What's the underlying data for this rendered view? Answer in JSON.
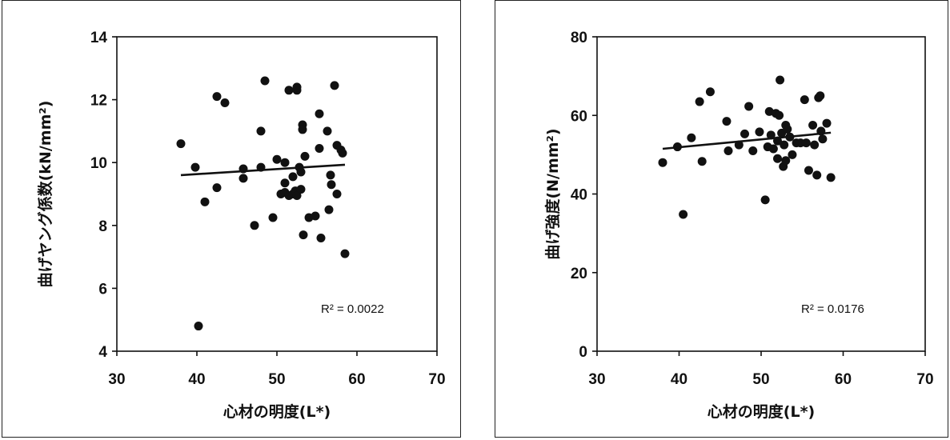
{
  "chart_data": [
    {
      "type": "scatter",
      "xlabel": "心材の明度(L*)",
      "ylabel": "曲げヤング係数(kN/mm²)",
      "xlim": [
        30,
        70
      ],
      "ylim": [
        4,
        14
      ],
      "xticks": [
        "30",
        "40",
        "50",
        "60",
        "70"
      ],
      "yticks": [
        "4",
        "6",
        "8",
        "10",
        "12",
        "14"
      ],
      "annotation": "R² = 0.0022",
      "trendline": {
        "x": [
          38,
          58.5
        ],
        "y": [
          9.6,
          9.93
        ]
      },
      "points": [
        {
          "x": 38,
          "y": 10.6
        },
        {
          "x": 39.8,
          "y": 9.85
        },
        {
          "x": 40.2,
          "y": 4.8
        },
        {
          "x": 41,
          "y": 8.75
        },
        {
          "x": 42.5,
          "y": 12.1
        },
        {
          "x": 42.5,
          "y": 9.2
        },
        {
          "x": 43.5,
          "y": 11.9
        },
        {
          "x": 45.8,
          "y": 9.8
        },
        {
          "x": 45.8,
          "y": 9.5
        },
        {
          "x": 47.2,
          "y": 8.0
        },
        {
          "x": 48,
          "y": 9.85
        },
        {
          "x": 48,
          "y": 11.0
        },
        {
          "x": 48.5,
          "y": 12.6
        },
        {
          "x": 49.5,
          "y": 8.25
        },
        {
          "x": 50,
          "y": 10.1
        },
        {
          "x": 50.5,
          "y": 9.0
        },
        {
          "x": 51,
          "y": 9.05
        },
        {
          "x": 51,
          "y": 9.35
        },
        {
          "x": 51,
          "y": 10.0
        },
        {
          "x": 51.5,
          "y": 12.3
        },
        {
          "x": 51.5,
          "y": 8.95
        },
        {
          "x": 52,
          "y": 9.55
        },
        {
          "x": 52,
          "y": 9.0
        },
        {
          "x": 52.3,
          "y": 9.1
        },
        {
          "x": 52.5,
          "y": 12.4
        },
        {
          "x": 52.5,
          "y": 12.3
        },
        {
          "x": 52.5,
          "y": 8.95
        },
        {
          "x": 52.8,
          "y": 9.85
        },
        {
          "x": 53,
          "y": 9.15
        },
        {
          "x": 53,
          "y": 9.7
        },
        {
          "x": 53.2,
          "y": 11.2
        },
        {
          "x": 53.2,
          "y": 11.05
        },
        {
          "x": 53.3,
          "y": 7.7
        },
        {
          "x": 53.5,
          "y": 10.2
        },
        {
          "x": 54,
          "y": 8.25
        },
        {
          "x": 54.8,
          "y": 8.3
        },
        {
          "x": 55.3,
          "y": 11.55
        },
        {
          "x": 55.3,
          "y": 10.45
        },
        {
          "x": 55.5,
          "y": 7.6
        },
        {
          "x": 56.3,
          "y": 11.0
        },
        {
          "x": 56.5,
          "y": 8.5
        },
        {
          "x": 56.7,
          "y": 9.6
        },
        {
          "x": 56.8,
          "y": 9.3
        },
        {
          "x": 57.2,
          "y": 12.45
        },
        {
          "x": 57.5,
          "y": 10.55
        },
        {
          "x": 57.5,
          "y": 9.0
        },
        {
          "x": 58,
          "y": 10.4
        },
        {
          "x": 58.2,
          "y": 10.3
        },
        {
          "x": 58.5,
          "y": 7.1
        }
      ]
    },
    {
      "type": "scatter",
      "xlabel": "心材の明度(L*)",
      "ylabel": "曲げ強度(N/mm²)",
      "xlim": [
        30,
        70
      ],
      "ylim": [
        0,
        80
      ],
      "xticks": [
        "30",
        "40",
        "50",
        "60",
        "70"
      ],
      "yticks": [
        "0",
        "20",
        "40",
        "60",
        "80"
      ],
      "annotation": "R² = 0.0176",
      "trendline": {
        "x": [
          38,
          58.5
        ],
        "y": [
          51.5,
          55.6
        ]
      },
      "points": [
        {
          "x": 38,
          "y": 48.0
        },
        {
          "x": 39.8,
          "y": 52.0
        },
        {
          "x": 40.5,
          "y": 34.8
        },
        {
          "x": 41.5,
          "y": 54.3
        },
        {
          "x": 42.5,
          "y": 63.5
        },
        {
          "x": 42.8,
          "y": 48.3
        },
        {
          "x": 43.8,
          "y": 66.0
        },
        {
          "x": 45.8,
          "y": 58.5
        },
        {
          "x": 46,
          "y": 51.0
        },
        {
          "x": 47.3,
          "y": 52.5
        },
        {
          "x": 48,
          "y": 55.3
        },
        {
          "x": 48.5,
          "y": 62.3
        },
        {
          "x": 49,
          "y": 51.0
        },
        {
          "x": 49.8,
          "y": 55.8
        },
        {
          "x": 50.5,
          "y": 38.5
        },
        {
          "x": 50.8,
          "y": 52.0
        },
        {
          "x": 51,
          "y": 61.0
        },
        {
          "x": 51.2,
          "y": 55.0
        },
        {
          "x": 51.5,
          "y": 51.5
        },
        {
          "x": 51.8,
          "y": 60.5
        },
        {
          "x": 52,
          "y": 53.5
        },
        {
          "x": 52,
          "y": 49.0
        },
        {
          "x": 52.2,
          "y": 60.0
        },
        {
          "x": 52.3,
          "y": 69.0
        },
        {
          "x": 52.5,
          "y": 55.5
        },
        {
          "x": 52.7,
          "y": 47.0
        },
        {
          "x": 52.8,
          "y": 52.5
        },
        {
          "x": 53,
          "y": 57.5
        },
        {
          "x": 53,
          "y": 48.5
        },
        {
          "x": 53.2,
          "y": 56.5
        },
        {
          "x": 53.5,
          "y": 54.5
        },
        {
          "x": 53.8,
          "y": 50.0
        },
        {
          "x": 54.3,
          "y": 53.0
        },
        {
          "x": 54.8,
          "y": 53.0
        },
        {
          "x": 55.3,
          "y": 64.0
        },
        {
          "x": 55.5,
          "y": 53.0
        },
        {
          "x": 55.8,
          "y": 46.0
        },
        {
          "x": 56.3,
          "y": 57.5
        },
        {
          "x": 56.5,
          "y": 52.5
        },
        {
          "x": 56.8,
          "y": 44.8
        },
        {
          "x": 57,
          "y": 64.5
        },
        {
          "x": 57.2,
          "y": 65.0
        },
        {
          "x": 57.3,
          "y": 56.0
        },
        {
          "x": 57.5,
          "y": 54.0
        },
        {
          "x": 58,
          "y": 58.0
        },
        {
          "x": 58.5,
          "y": 44.2
        }
      ]
    }
  ]
}
